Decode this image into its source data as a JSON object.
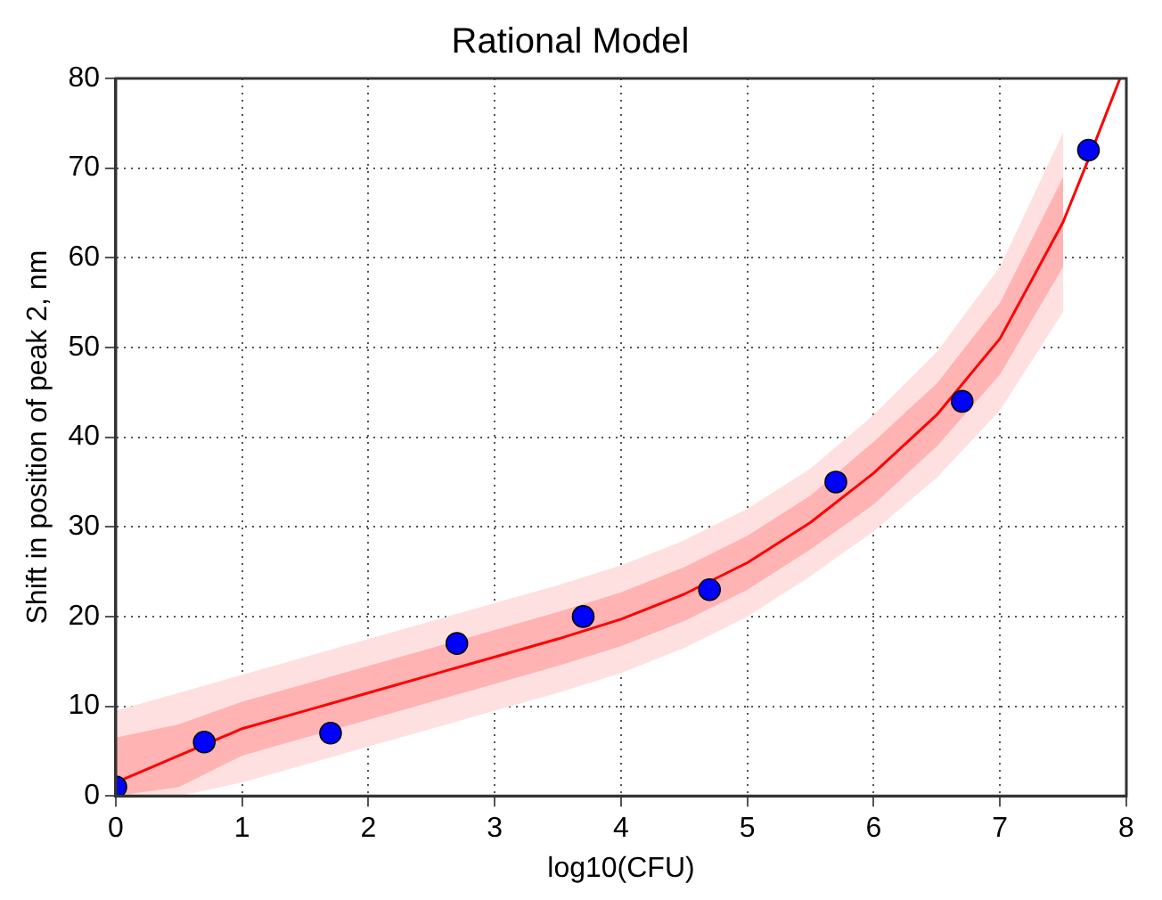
{
  "chart_data": {
    "type": "scatter",
    "title": "Rational Model",
    "xlabel": "log10(CFU)",
    "ylabel": "Shift in position of peak 2, nm",
    "xlim": [
      0,
      8
    ],
    "ylim": [
      0,
      80
    ],
    "xticks": [
      0,
      1,
      2,
      3,
      4,
      5,
      6,
      7,
      8
    ],
    "yticks": [
      0,
      10,
      20,
      30,
      40,
      50,
      60,
      70,
      80
    ],
    "grid": true,
    "legend": false,
    "series": [
      {
        "type": "line",
        "color": "#ffe0e0",
        "x": [
          0,
          0.5,
          1,
          1.5,
          2,
          2.5,
          3,
          3.5,
          4,
          4.5,
          5,
          5.5,
          6,
          6.5,
          7,
          7.5
        ],
        "values": [
          null,
          null,
          null,
          null,
          null,
          null,
          null,
          null,
          null,
          null,
          null,
          null,
          null,
          null,
          null,
          null
        ],
        "lower": [
          0,
          0,
          1.5,
          3.5,
          5.5,
          7.5,
          9.5,
          11.5,
          13.7,
          16.5,
          20,
          24.5,
          29.5,
          35.5,
          43,
          54
        ],
        "upper": [
          9.5,
          11.5,
          13.5,
          15.5,
          17.5,
          19.5,
          21.5,
          23.5,
          25.7,
          28.5,
          32,
          36.5,
          42.5,
          49.5,
          59,
          74
        ]
      },
      {
        "type": "line",
        "color": "#ff0000",
        "marker": "none",
        "x": [
          0,
          0.5,
          1,
          1.5,
          2,
          2.5,
          3,
          3.5,
          4,
          4.5,
          5,
          5.5,
          6,
          6.5,
          7,
          7.5,
          7.7,
          7.95
        ],
        "values": [
          1.5,
          4.5,
          7.5,
          9.5,
          11.5,
          13.5,
          15.5,
          17.5,
          19.7,
          22.5,
          26,
          30.5,
          36,
          42.5,
          51,
          64,
          71,
          80
        ],
        "lower": [
          0,
          1,
          4.5,
          6.5,
          8.5,
          10.5,
          12.5,
          14.5,
          16.7,
          19.5,
          23,
          27.5,
          32.5,
          39,
          47,
          59,
          null,
          null
        ],
        "upper": [
          6.5,
          8,
          10.5,
          12.5,
          14.5,
          16.5,
          18.5,
          20.5,
          22.7,
          25.5,
          29,
          33.5,
          39.5,
          46,
          55,
          69,
          null,
          null
        ]
      },
      {
        "color": "#0000ff",
        "marker": "circle",
        "x": [
          0,
          0.7,
          1.7,
          2.7,
          3.7,
          4.7,
          5.7,
          6.7,
          7.7
        ],
        "values": [
          1,
          6,
          7,
          17,
          20,
          23,
          35,
          44,
          72
        ]
      }
    ]
  }
}
